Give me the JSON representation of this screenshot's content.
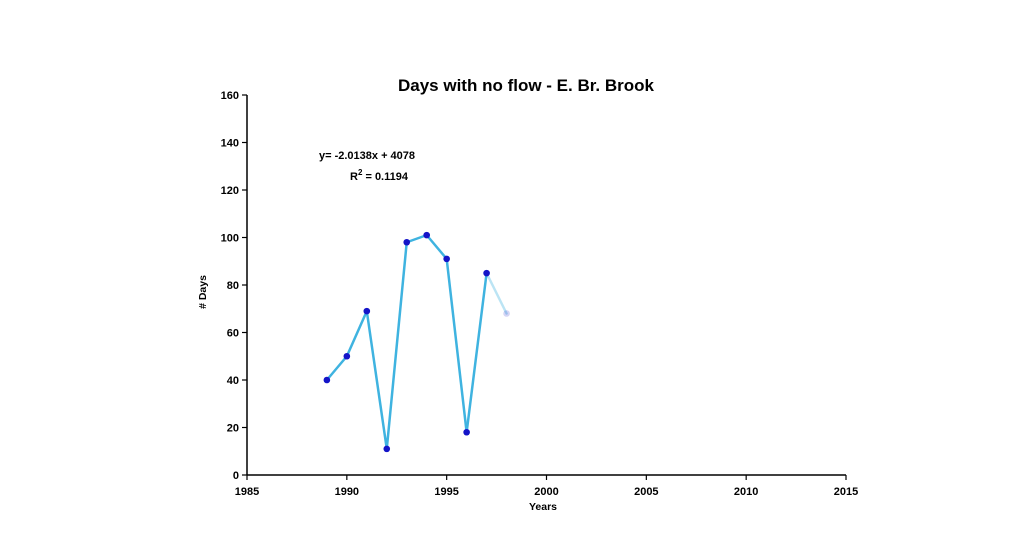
{
  "chart_data": {
    "type": "line",
    "title": "Days with no flow - E. Br. Brook",
    "xlabel": "Years",
    "ylabel": "# Days",
    "xlim": [
      1985,
      2015
    ],
    "ylim": [
      0,
      160
    ],
    "xticks": [
      1985,
      1990,
      1995,
      2000,
      2005,
      2010,
      2015
    ],
    "yticks": [
      0,
      20,
      40,
      60,
      80,
      100,
      120,
      140,
      160
    ],
    "grid": false,
    "series": [
      {
        "x": [
          1989,
          1990,
          1991,
          1992,
          1993,
          1994,
          1995,
          1996,
          1997,
          1998
        ],
        "y": [
          40,
          50,
          69,
          11,
          98,
          101,
          91,
          18,
          85,
          68
        ],
        "line_color": "#3fb3e0",
        "marker_color": "#1414c8"
      }
    ],
    "annotations": {
      "equation": "y= -2.0138x + 4078",
      "r2_prefix": "R",
      "r2_sup": "2",
      "r2_value": " = 0.1194"
    }
  }
}
